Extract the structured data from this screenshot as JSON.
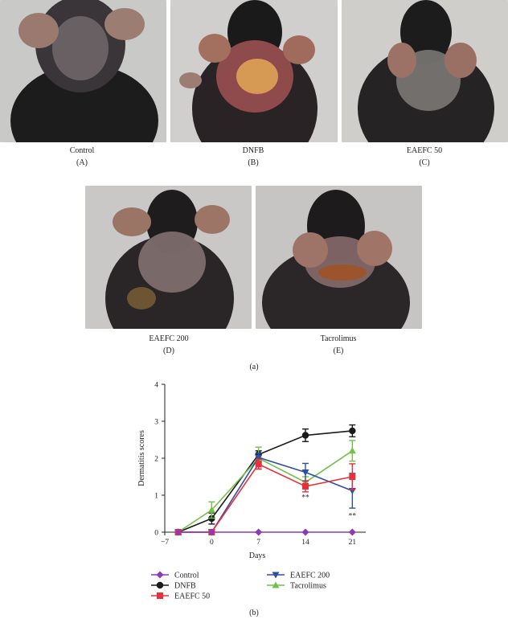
{
  "panels": [
    {
      "name": "Control",
      "letter": "(A)"
    },
    {
      "name": "DNFB",
      "letter": "(B)"
    },
    {
      "name": "EAEFC 50",
      "letter": "(C)"
    },
    {
      "name": "EAEFC 200",
      "letter": "(D)"
    },
    {
      "name": "Tacrolimus",
      "letter": "(E)"
    }
  ],
  "figure_labels": {
    "a": "(a)",
    "b": "(b)"
  },
  "chart_data": {
    "type": "line",
    "title": "",
    "xlabel": "Days",
    "ylabel": "Dermatitis scores",
    "x": [
      -5,
      0,
      7,
      14,
      21
    ],
    "xlim": [
      -7,
      23
    ],
    "ylim": [
      0,
      4
    ],
    "xticks": [
      -7,
      0,
      7,
      14,
      21
    ],
    "yticks": [
      0,
      1,
      2,
      3,
      4
    ],
    "grid": false,
    "legend_position": "bottom",
    "series": [
      {
        "name": "Control",
        "color": "#8e3ab3",
        "marker": "diamond",
        "values": [
          0.0,
          0.0,
          0.0,
          0.0,
          0.0
        ],
        "errors": [
          0,
          0,
          0,
          0,
          0
        ]
      },
      {
        "name": "DNFB",
        "color": "#1a1a1a",
        "marker": "circle",
        "values": [
          0.0,
          0.37,
          2.1,
          2.62,
          2.74
        ],
        "errors": [
          0,
          0.15,
          0.1,
          0.17,
          0.16
        ]
      },
      {
        "name": "EAEFC 50",
        "color": "#e8303a",
        "marker": "square",
        "values": [
          0.0,
          0.0,
          1.84,
          1.24,
          1.5
        ],
        "errors": [
          0,
          0,
          0.13,
          0.15,
          0.35
        ]
      },
      {
        "name": "EAEFC 200",
        "color": "#2e4fa3",
        "marker": "triangle-down",
        "values": [
          0.0,
          0.0,
          2.02,
          1.62,
          1.12
        ],
        "errors": [
          0,
          0,
          0.12,
          0.24,
          0.47
        ]
      },
      {
        "name": "Tacrolimus",
        "color": "#72c04a",
        "marker": "triangle-up",
        "values": [
          0.0,
          0.6,
          2.0,
          1.35,
          2.2
        ],
        "errors": [
          0,
          0.22,
          0.3,
          0.15,
          0.28
        ]
      }
    ],
    "annotations": [
      {
        "x": 14,
        "y": 0.88,
        "text": "**"
      },
      {
        "x": 21,
        "y": 0.38,
        "text": "**"
      }
    ]
  }
}
